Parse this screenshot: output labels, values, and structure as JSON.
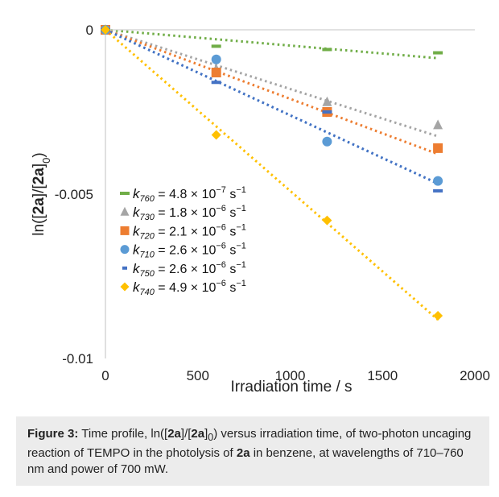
{
  "chart_data": {
    "type": "scatter",
    "xlabel": "Irradiation time / s",
    "ylabel": "ln([2a]/[2a]0)",
    "xlim": [
      0,
      2000
    ],
    "ylim": [
      -0.01,
      0
    ],
    "x_ticks": [
      "0",
      "500",
      "1000",
      "1500",
      "2000"
    ],
    "y_ticks": [
      "0",
      "-0.005",
      "-0.01"
    ],
    "grid": false,
    "legend_placement": "lower-left",
    "trendlines": "dotted linear fits",
    "series": [
      {
        "name": "k760 = 4.8 × 10−7 s−1",
        "sub": "760",
        "value": "4.8",
        "exp": "−7",
        "color": "#70ad47",
        "marker": "dash",
        "x": [
          0,
          600,
          1200,
          1800
        ],
        "y": [
          0,
          -0.0005,
          -0.0006,
          -0.0007
        ],
        "slope": -4.8e-07
      },
      {
        "name": "k730 = 1.8 × 10−6 s−1",
        "sub": "730",
        "value": "1.8",
        "exp": "−6",
        "color": "#a5a5a5",
        "marker": "triangle",
        "x": [
          0,
          600,
          1200,
          1800
        ],
        "y": [
          0,
          -0.0012,
          -0.0022,
          -0.0029
        ],
        "slope": -1.8e-06
      },
      {
        "name": "k720 = 2.1 × 10−6 s−1",
        "sub": "720",
        "value": "2.1",
        "exp": "−6",
        "color": "#ed7d31",
        "marker": "square",
        "x": [
          0,
          600,
          1200,
          1800
        ],
        "y": [
          0,
          -0.0013,
          -0.0025,
          -0.0036
        ],
        "slope": -2.1e-06
      },
      {
        "name": "k710 = 2.6 × 10−6 s−1",
        "sub": "710",
        "value": "2.6",
        "exp": "−6",
        "color": "#5b9bd5",
        "marker": "circle",
        "x": [
          0,
          600,
          1200,
          1800
        ],
        "y": [
          0,
          -0.0009,
          -0.0034,
          -0.0046
        ],
        "slope": -2.6e-06
      },
      {
        "name": "k750 = 2.6 × 10−6 s−1",
        "sub": "750",
        "value": "2.6",
        "exp": "−6",
        "color": "#4472c4",
        "marker": "dash",
        "x": [
          0,
          600,
          1200,
          1800
        ],
        "y": [
          0,
          -0.0016,
          -0.0025,
          -0.0049
        ],
        "slope": -2.6e-06
      },
      {
        "name": "k740 = 4.9 × 10−6 s−1",
        "sub": "740",
        "value": "4.9",
        "exp": "−6",
        "color": "#ffc000",
        "marker": "diamond",
        "x": [
          0,
          600,
          1200,
          1800
        ],
        "y": [
          0,
          -0.0032,
          -0.0058,
          -0.0087
        ],
        "slope": -4.9e-06
      }
    ]
  },
  "caption": {
    "label": "Figure 3:",
    "part1": " Time profile, ln([",
    "bold1": "2a",
    "part2": "]/[",
    "bold2": "2a",
    "part3": "]",
    "sub0": "0",
    "part4": ") versus irradiation time, of two-photon uncaging reaction of TEMPO in the photolysis of ",
    "bold3": "2a",
    "part5": " in benzene, at wavelengths of 710–760 nm and power of 700 mW."
  }
}
